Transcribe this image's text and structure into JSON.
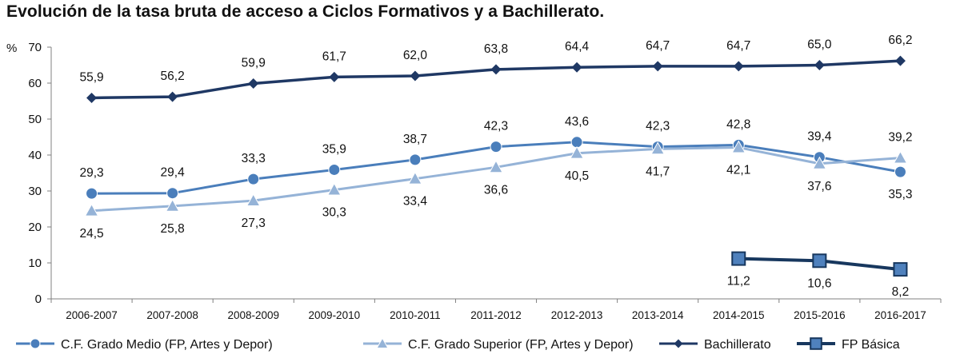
{
  "chart_data": {
    "type": "line",
    "title": "Evolución de la tasa bruta de acceso a Ciclos Formativos y a Bachillerato.",
    "ylabel": "%",
    "ylim": [
      0,
      70
    ],
    "yticks": [
      "0",
      "10",
      "20",
      "30",
      "40",
      "50",
      "60",
      "70"
    ],
    "grid": false,
    "legend_position": "bottom",
    "categories": [
      "2006-2007",
      "2007-2008",
      "2008-2009",
      "2009-2010",
      "2010-2011",
      "2011-2012",
      "2012-2013",
      "2013-2014",
      "2014-2015",
      "2015-2016",
      "2016-2017"
    ],
    "series": [
      {
        "name": "C.F. Grado Medio (FP, Artes y Depor)",
        "marker": "circle",
        "color": "#4A7EBB",
        "values": [
          29.3,
          29.4,
          33.3,
          35.9,
          38.7,
          42.3,
          43.6,
          42.3,
          42.8,
          39.4,
          35.3
        ],
        "labels": [
          "29,3",
          "29,4",
          "33,3",
          "35,9",
          "38,7",
          "42,3",
          "43,6",
          "42,3",
          "42,8",
          "39,4",
          "35,3"
        ]
      },
      {
        "name": "C.F. Grado Superior  (FP, Artes y Depor)",
        "marker": "triangle",
        "color": "#95B3D7",
        "values": [
          24.5,
          25.8,
          27.3,
          30.3,
          33.4,
          36.6,
          40.5,
          41.7,
          42.1,
          37.6,
          39.2
        ],
        "labels": [
          "24,5",
          "25,8",
          "27,3",
          "30,3",
          "33,4",
          "36,6",
          "40,5",
          "41,7",
          "42,1",
          "37,6",
          "39,2"
        ]
      },
      {
        "name": "Bachillerato",
        "marker": "diamond",
        "color": "#1F3864",
        "values": [
          55.9,
          56.2,
          59.9,
          61.7,
          62.0,
          63.8,
          64.4,
          64.7,
          64.7,
          65.0,
          66.2
        ],
        "labels": [
          "55,9",
          "56,2",
          "59,9",
          "61,7",
          "62,0",
          "63,8",
          "64,4",
          "64,7",
          "64,7",
          "65,0",
          "66,2"
        ]
      },
      {
        "name": "FP Básica",
        "marker": "square",
        "color": "#17375E",
        "fill": "#4F81BD",
        "values": [
          null,
          null,
          null,
          null,
          null,
          null,
          null,
          null,
          11.2,
          10.6,
          8.2
        ],
        "labels": [
          "",
          "",
          "",
          "",
          "",
          "",
          "",
          "",
          "11,2",
          "10,6",
          "8,2"
        ]
      }
    ]
  }
}
